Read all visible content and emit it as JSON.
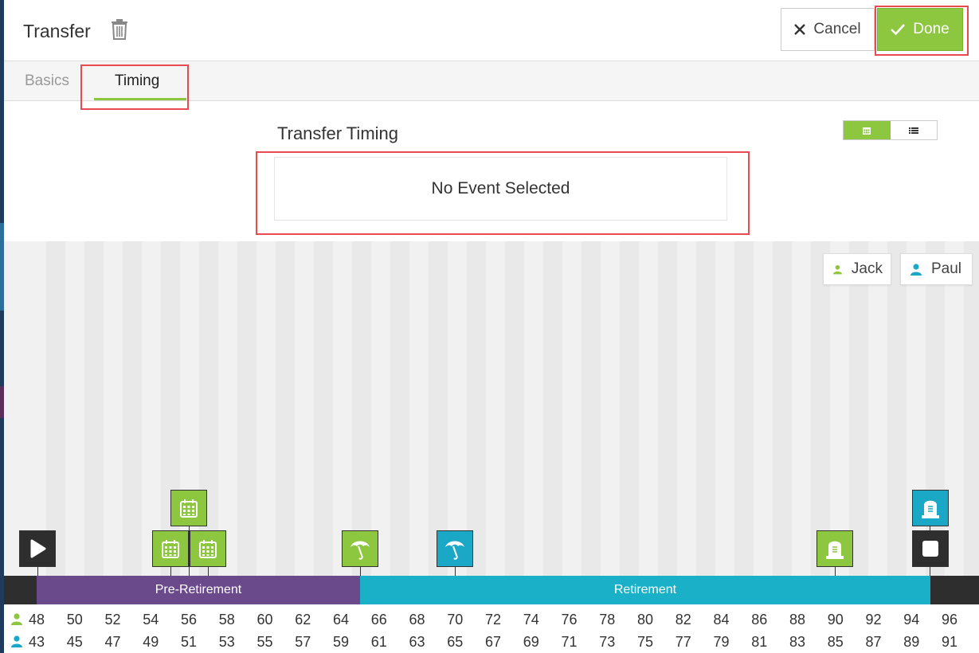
{
  "header": {
    "title": "Transfer",
    "cancel_label": "Cancel",
    "done_label": "Done"
  },
  "tabs": [
    {
      "label": "Basics",
      "active": false
    },
    {
      "label": "Timing",
      "active": true
    }
  ],
  "section": {
    "title": "Transfer Timing",
    "event_placeholder": "No Event Selected",
    "view_toggle": {
      "options": [
        "calendar-icon",
        "list-icon"
      ],
      "active": "calendar-icon"
    }
  },
  "people": [
    {
      "name": "Jack",
      "color": "#8dc63f"
    },
    {
      "name": "Paul",
      "color": "#1ba8c7"
    }
  ],
  "phases": [
    {
      "label": "Pre-Retirement",
      "color": "#6b4a8c"
    },
    {
      "label": "Retirement",
      "color": "#1ab0c8"
    }
  ],
  "events": [
    {
      "icon": "play-icon",
      "owner": "start",
      "age_jack": 48
    },
    {
      "icon": "calendar-icon",
      "owner": "Jack",
      "age_jack": 55
    },
    {
      "icon": "calendar-icon",
      "owner": "Jack",
      "age_jack": 56
    },
    {
      "icon": "calendar-icon",
      "owner": "Jack",
      "age_jack": 57
    },
    {
      "icon": "umbrella-icon",
      "owner": "Jack",
      "age_jack": 65
    },
    {
      "icon": "umbrella-icon",
      "owner": "Paul",
      "age_jack": 70
    },
    {
      "icon": "tombstone-icon",
      "owner": "Jack",
      "age_jack": 90
    },
    {
      "icon": "stop-icon",
      "owner": "end",
      "age_jack": 95
    },
    {
      "icon": "tombstone-icon",
      "owner": "Paul",
      "age_jack": 95
    }
  ],
  "ages": {
    "jack": [
      "48",
      "50",
      "52",
      "54",
      "56",
      "58",
      "60",
      "62",
      "64",
      "66",
      "68",
      "70",
      "72",
      "74",
      "76",
      "78",
      "80",
      "82",
      "84",
      "86",
      "88",
      "90",
      "92",
      "94",
      "96"
    ],
    "paul": [
      "43",
      "45",
      "47",
      "49",
      "51",
      "53",
      "55",
      "57",
      "59",
      "61",
      "63",
      "65",
      "67",
      "69",
      "71",
      "73",
      "75",
      "77",
      "79",
      "81",
      "83",
      "85",
      "87",
      "89",
      "91"
    ]
  },
  "colors": {
    "accent_green": "#8dc63f",
    "accent_blue": "#1ba8c7",
    "highlight_red": "#e84a4f"
  }
}
